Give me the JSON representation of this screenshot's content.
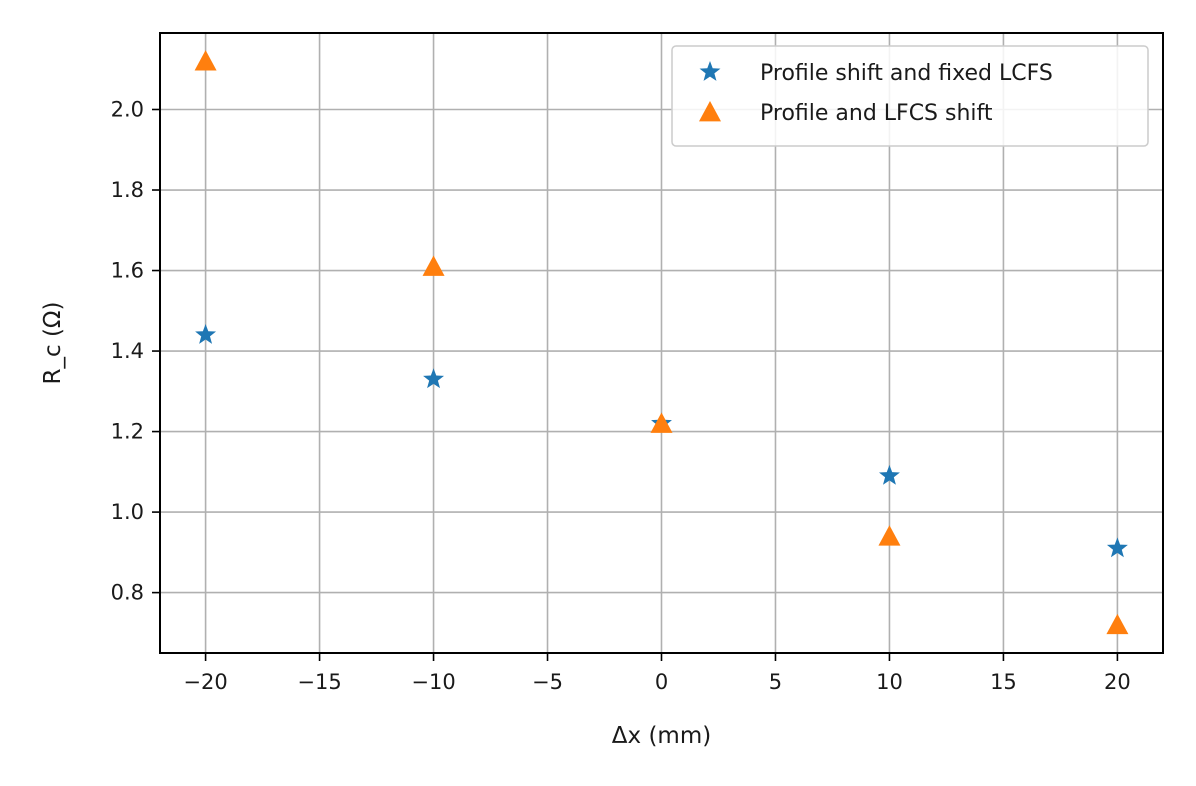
{
  "chart_data": {
    "type": "scatter",
    "title": "",
    "xlabel": "Δx (mm)",
    "ylabel": "R_c (Ω)",
    "xlim": [
      -22,
      22
    ],
    "ylim": [
      0.65,
      2.19
    ],
    "xticks": [
      -20,
      -15,
      -10,
      -5,
      0,
      5,
      10,
      15,
      20
    ],
    "xtick_labels": [
      "−20",
      "−15",
      "−10",
      "−5",
      "0",
      "5",
      "10",
      "15",
      "20"
    ],
    "yticks": [
      0.8,
      1.0,
      1.2,
      1.4,
      1.6,
      1.8,
      2.0
    ],
    "ytick_labels": [
      "0.8",
      "1.0",
      "1.2",
      "1.4",
      "1.6",
      "1.8",
      "2.0"
    ],
    "grid": true,
    "legend_position": "top-right",
    "series": [
      {
        "name": "Profile shift and fixed LCFS",
        "marker": "star",
        "color": "#1f77b4",
        "x": [
          -20,
          -10,
          0,
          10,
          20
        ],
        "y": [
          1.44,
          1.33,
          1.22,
          1.09,
          0.91
        ]
      },
      {
        "name": "Profile and LFCS shift",
        "marker": "triangle",
        "color": "#ff7f0e",
        "x": [
          -20,
          -10,
          0,
          10,
          20
        ],
        "y": [
          2.12,
          1.61,
          1.22,
          0.94,
          0.72
        ]
      }
    ]
  }
}
